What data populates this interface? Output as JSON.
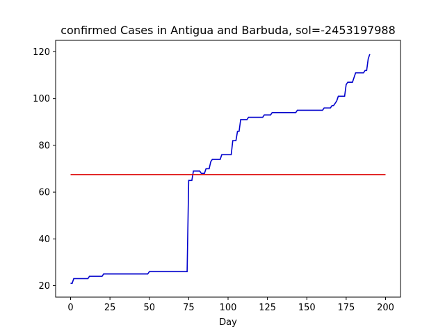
{
  "chart_data": {
    "type": "line",
    "title": "confirmed Cases in Antigua and Barbuda, sol=-2453197988",
    "xlabel": "Day",
    "ylabel": "",
    "xlim": [
      -9.5,
      209.5
    ],
    "ylim": [
      15.1,
      124.9
    ],
    "xticks": [
      0,
      25,
      50,
      75,
      100,
      125,
      150,
      175,
      200
    ],
    "yticks": [
      20,
      40,
      60,
      80,
      100,
      120
    ],
    "grid": false,
    "series": [
      {
        "color": "#0000cc",
        "style": "steps",
        "points": [
          [
            0,
            21
          ],
          [
            1,
            21
          ],
          [
            2,
            23
          ],
          [
            11,
            23
          ],
          [
            12,
            24
          ],
          [
            20,
            24
          ],
          [
            21,
            25
          ],
          [
            49,
            25
          ],
          [
            50,
            26
          ],
          [
            74,
            26
          ],
          [
            75,
            65
          ],
          [
            77,
            65
          ],
          [
            78,
            69
          ],
          [
            82,
            69
          ],
          [
            83,
            68
          ],
          [
            85,
            68
          ],
          [
            86,
            70
          ],
          [
            88,
            70
          ],
          [
            89,
            73
          ],
          [
            90,
            74
          ],
          [
            95,
            74
          ],
          [
            96,
            76
          ],
          [
            102,
            76
          ],
          [
            103,
            82
          ],
          [
            105,
            82
          ],
          [
            106,
            86
          ],
          [
            107,
            86
          ],
          [
            108,
            91
          ],
          [
            112,
            91
          ],
          [
            113,
            92
          ],
          [
            122,
            92
          ],
          [
            123,
            93
          ],
          [
            127,
            93
          ],
          [
            128,
            94
          ],
          [
            143,
            94
          ],
          [
            144,
            95
          ],
          [
            160,
            95
          ],
          [
            161,
            96
          ],
          [
            165,
            96
          ],
          [
            166,
            97
          ],
          [
            167,
            97
          ],
          [
            168,
            98
          ],
          [
            169,
            99
          ],
          [
            170,
            101
          ],
          [
            174,
            101
          ],
          [
            175,
            106
          ],
          [
            176,
            107
          ],
          [
            179,
            107
          ],
          [
            180,
            109
          ],
          [
            181,
            111
          ],
          [
            186,
            111
          ],
          [
            187,
            112
          ],
          [
            188,
            112
          ],
          [
            189,
            117
          ],
          [
            190,
            119
          ]
        ]
      },
      {
        "color": "#dd0000",
        "style": "line",
        "points": [
          [
            0,
            67.5
          ],
          [
            200,
            67.5
          ]
        ]
      }
    ]
  }
}
